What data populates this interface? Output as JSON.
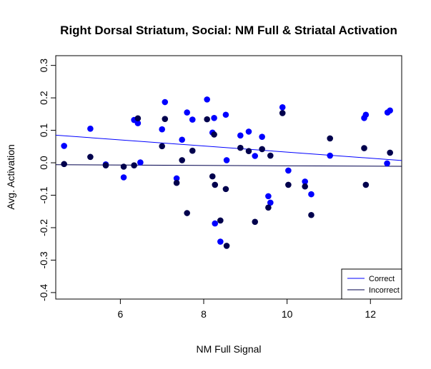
{
  "chart_data": {
    "type": "scatter",
    "title": "Right Dorsal Striatum, Social: NM Full & Striatal Activation",
    "xlabel": "NM Full Signal",
    "ylabel": "Avg. Activation",
    "xlim": [
      4.45,
      12.75
    ],
    "ylim": [
      -0.42,
      0.33
    ],
    "x_ticks": [
      6,
      8,
      10,
      12
    ],
    "x_tick_labels": [
      "6",
      "8",
      "10",
      "12"
    ],
    "y_ticks": [
      -0.4,
      -0.3,
      -0.2,
      -0.1,
      0.0,
      0.1,
      0.2,
      0.3
    ],
    "y_tick_labels": [
      "-0.4",
      "-0.3",
      "-0.2",
      "-0.1",
      "0.0",
      "0.1",
      "0.2",
      "0.3"
    ],
    "grid": false,
    "legend_position": "bottom-right",
    "colors": {
      "Correct": "#0000ff",
      "Incorrect": "#00004d"
    },
    "series": [
      {
        "name": "Correct",
        "color": "#0000ff",
        "trend": {
          "x": [
            4.45,
            12.75
          ],
          "y": [
            0.085,
            0.007
          ]
        },
        "points": [
          [
            4.65,
            0.052
          ],
          [
            5.28,
            0.105
          ],
          [
            5.65,
            -0.005
          ],
          [
            6.08,
            -0.045
          ],
          [
            6.33,
            0.132
          ],
          [
            6.42,
            0.122
          ],
          [
            6.48,
            0.001
          ],
          [
            7.0,
            0.103
          ],
          [
            7.07,
            0.187
          ],
          [
            7.35,
            -0.048
          ],
          [
            7.48,
            0.071
          ],
          [
            7.6,
            0.155
          ],
          [
            7.73,
            0.133
          ],
          [
            8.08,
            0.195
          ],
          [
            8.21,
            0.093
          ],
          [
            8.25,
            0.138
          ],
          [
            8.27,
            -0.187
          ],
          [
            8.4,
            -0.243
          ],
          [
            8.53,
            0.148
          ],
          [
            8.55,
            0.008
          ],
          [
            8.88,
            0.084
          ],
          [
            9.08,
            0.096
          ],
          [
            9.23,
            0.021
          ],
          [
            9.4,
            0.08
          ],
          [
            9.55,
            -0.103
          ],
          [
            9.6,
            -0.123
          ],
          [
            9.89,
            0.171
          ],
          [
            10.03,
            -0.024
          ],
          [
            10.43,
            -0.058
          ],
          [
            10.58,
            -0.097
          ],
          [
            11.03,
            0.022
          ],
          [
            11.85,
            0.138
          ],
          [
            11.89,
            0.148
          ],
          [
            12.4,
            -0.002
          ],
          [
            12.41,
            0.155
          ],
          [
            12.47,
            0.161
          ]
        ]
      },
      {
        "name": "Incorrect",
        "color": "#00004d",
        "trend": {
          "x": [
            4.45,
            12.75
          ],
          "y": [
            -0.006,
            -0.011
          ]
        },
        "points": [
          [
            4.65,
            -0.004
          ],
          [
            5.28,
            0.018
          ],
          [
            5.65,
            -0.008
          ],
          [
            6.08,
            -0.012
          ],
          [
            6.33,
            -0.008
          ],
          [
            6.42,
            0.137
          ],
          [
            7.0,
            0.051
          ],
          [
            7.07,
            0.135
          ],
          [
            7.35,
            -0.062
          ],
          [
            7.48,
            0.008
          ],
          [
            7.6,
            -0.155
          ],
          [
            7.73,
            0.037
          ],
          [
            8.08,
            0.134
          ],
          [
            8.21,
            -0.042
          ],
          [
            8.25,
            0.087
          ],
          [
            8.27,
            -0.068
          ],
          [
            8.4,
            -0.178
          ],
          [
            8.53,
            -0.081
          ],
          [
            8.55,
            -0.256
          ],
          [
            8.88,
            0.046
          ],
          [
            9.08,
            0.036
          ],
          [
            9.23,
            -0.182
          ],
          [
            9.4,
            0.042
          ],
          [
            9.55,
            -0.138
          ],
          [
            9.6,
            0.022
          ],
          [
            9.89,
            0.153
          ],
          [
            10.03,
            -0.068
          ],
          [
            10.43,
            -0.073
          ],
          [
            10.58,
            -0.161
          ],
          [
            11.03,
            0.075
          ],
          [
            11.85,
            0.045
          ],
          [
            11.89,
            -0.068
          ],
          [
            12.47,
            0.031
          ]
        ]
      }
    ]
  }
}
